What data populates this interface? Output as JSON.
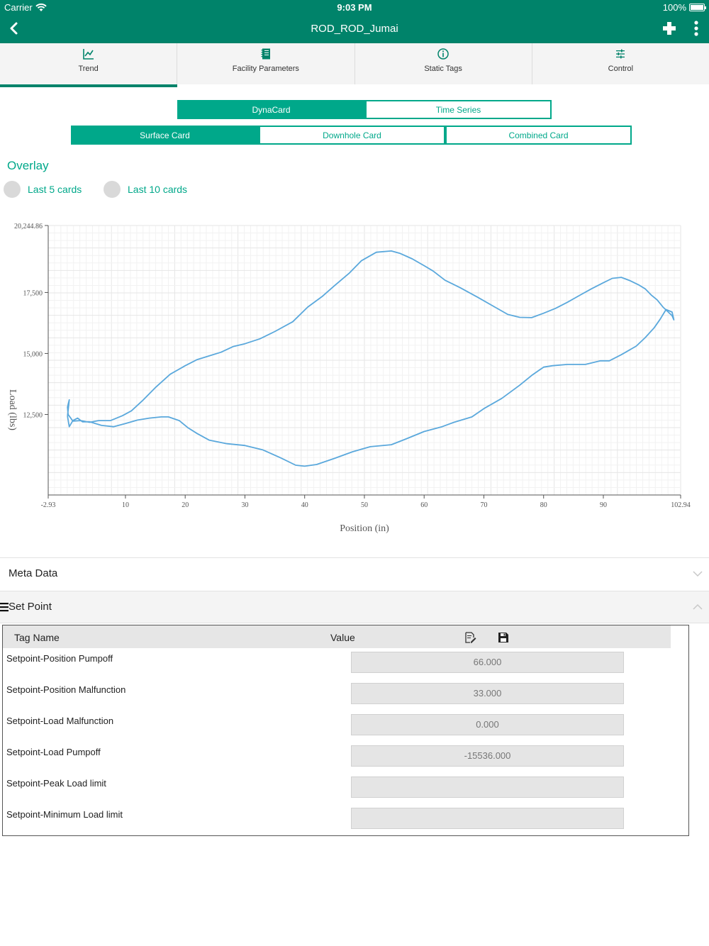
{
  "status_bar": {
    "carrier": "Carrier",
    "time": "9:03 PM",
    "battery": "100%"
  },
  "nav": {
    "title": "ROD_ROD_Jumai"
  },
  "tabs": [
    {
      "label": "Trend",
      "icon": "trend-chart-icon"
    },
    {
      "label": "Facility Parameters",
      "icon": "notebook-icon"
    },
    {
      "label": "Static Tags",
      "icon": "info-icon"
    },
    {
      "label": "Control",
      "icon": "sliders-icon"
    }
  ],
  "toggle_primary": {
    "dynacard": "DynaCard",
    "time_series": "Time Series"
  },
  "toggle_card": {
    "surface": "Surface Card",
    "downhole": "Downhole Card",
    "combined": "Combined Card"
  },
  "overlay": {
    "title": "Overlay",
    "last5": "Last 5 cards",
    "last10": "Last 10 cards"
  },
  "colors": {
    "primary": "#00836a",
    "accent": "#00a88a",
    "line": "#5aa8dc"
  },
  "chart_data": {
    "type": "line",
    "xlabel": "Position (in)",
    "ylabel": "Load (lbs)",
    "xlim": [
      -2.93,
      102.94
    ],
    "ylim": [
      9200,
      20244.86
    ],
    "x_ticks": [
      -2.93,
      10,
      20,
      30,
      40,
      50,
      60,
      70,
      80,
      90,
      102.94
    ],
    "y_ticks": [
      12500,
      15000,
      17500,
      20244.86
    ],
    "x_tick_labels": [
      "-2.93",
      "10",
      "20",
      "30",
      "40",
      "50",
      "60",
      "70",
      "80",
      "90",
      "102.94"
    ],
    "y_tick_labels": [
      "12,500",
      "15,000",
      "17,500",
      "20,244.86"
    ],
    "grid": true,
    "series": [
      {
        "points": [
          [
            0.3,
            12430
          ],
          [
            0.6,
            12000
          ],
          [
            1.2,
            12250
          ],
          [
            2.0,
            12350
          ],
          [
            2.8,
            12200
          ],
          [
            4.0,
            12200
          ],
          [
            6.0,
            12050
          ],
          [
            8.0,
            12000
          ],
          [
            10.0,
            12130
          ],
          [
            12.0,
            12270
          ],
          [
            14.0,
            12350
          ],
          [
            16.0,
            12400
          ],
          [
            17.2,
            12400
          ],
          [
            19.0,
            12250
          ],
          [
            20.5,
            11950
          ],
          [
            22.0,
            11720
          ],
          [
            24.0,
            11450
          ],
          [
            27.0,
            11300
          ],
          [
            30.0,
            11230
          ],
          [
            33.0,
            11050
          ],
          [
            36.0,
            10720
          ],
          [
            38.5,
            10420
          ],
          [
            40.0,
            10380
          ],
          [
            42.0,
            10450
          ],
          [
            45.0,
            10700
          ],
          [
            48.0,
            10970
          ],
          [
            51.0,
            11180
          ],
          [
            54.5,
            11260
          ],
          [
            57.0,
            11500
          ],
          [
            60.0,
            11800
          ],
          [
            63.0,
            12000
          ],
          [
            65.0,
            12180
          ],
          [
            68.0,
            12400
          ],
          [
            70.0,
            12740
          ],
          [
            73.0,
            13160
          ],
          [
            76.0,
            13700
          ],
          [
            78.0,
            14100
          ],
          [
            80.0,
            14440
          ],
          [
            81.5,
            14500
          ],
          [
            84.0,
            14550
          ],
          [
            87.0,
            14550
          ],
          [
            89.5,
            14700
          ],
          [
            91.0,
            14700
          ],
          [
            93.0,
            14950
          ],
          [
            95.5,
            15300
          ],
          [
            97.0,
            15650
          ],
          [
            98.5,
            16050
          ],
          [
            99.5,
            16400
          ],
          [
            100.5,
            16800
          ],
          [
            101.5,
            16700
          ],
          [
            101.8,
            16380
          ],
          [
            101.5,
            16550
          ],
          [
            100.0,
            16900
          ],
          [
            99.0,
            17200
          ],
          [
            98.0,
            17400
          ],
          [
            97.0,
            17650
          ],
          [
            96.0,
            17800
          ],
          [
            94.5,
            17980
          ],
          [
            93.0,
            18120
          ],
          [
            91.5,
            18080
          ],
          [
            90.0,
            17900
          ],
          [
            88.0,
            17650
          ],
          [
            86.0,
            17380
          ],
          [
            84.0,
            17100
          ],
          [
            82.0,
            16850
          ],
          [
            80.0,
            16650
          ],
          [
            78.0,
            16470
          ],
          [
            76.0,
            16480
          ],
          [
            74.0,
            16600
          ],
          [
            71.5,
            16950
          ],
          [
            69.0,
            17300
          ],
          [
            66.0,
            17700
          ],
          [
            63.5,
            18000
          ],
          [
            61.5,
            18380
          ],
          [
            60.0,
            18600
          ],
          [
            58.0,
            18880
          ],
          [
            56.0,
            19100
          ],
          [
            54.5,
            19200
          ],
          [
            52.0,
            19150
          ],
          [
            49.5,
            18800
          ],
          [
            47.5,
            18300
          ],
          [
            45.0,
            17780
          ],
          [
            43.0,
            17350
          ],
          [
            40.5,
            16900
          ],
          [
            38.0,
            16300
          ],
          [
            35.0,
            15900
          ],
          [
            32.5,
            15600
          ],
          [
            30.0,
            15400
          ],
          [
            28.0,
            15280
          ],
          [
            26.0,
            15050
          ],
          [
            24.0,
            14900
          ],
          [
            22.0,
            14750
          ],
          [
            20.0,
            14500
          ],
          [
            17.5,
            14150
          ],
          [
            15.0,
            13600
          ],
          [
            13.0,
            13100
          ],
          [
            11.0,
            12650
          ],
          [
            9.5,
            12450
          ],
          [
            7.5,
            12250
          ],
          [
            5.5,
            12250
          ],
          [
            4.0,
            12180
          ],
          [
            2.5,
            12250
          ],
          [
            1.2,
            12230
          ],
          [
            0.4,
            12500
          ],
          [
            0.3,
            12800
          ],
          [
            0.6,
            13100
          ],
          [
            0.3,
            12430
          ]
        ]
      }
    ]
  },
  "meta_data": {
    "label": "Meta Data"
  },
  "set_point": {
    "label": "Set Point"
  },
  "setpoint_table": {
    "headers": {
      "tag": "Tag Name",
      "value": "Value"
    },
    "rows": [
      {
        "name": "Setpoint-Position Pumpoff",
        "value": "66.000"
      },
      {
        "name": "Setpoint-Position Malfunction",
        "value": "33.000"
      },
      {
        "name": "Setpoint-Load Malfunction",
        "value": "0.000"
      },
      {
        "name": "Setpoint-Load Pumpoff",
        "value": "-15536.000"
      },
      {
        "name": "Setpoint-Peak Load limit",
        "value": ""
      },
      {
        "name": "Setpoint-Minimum Load limit",
        "value": ""
      }
    ]
  }
}
